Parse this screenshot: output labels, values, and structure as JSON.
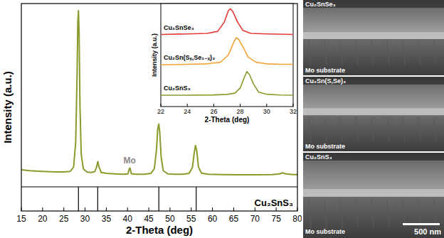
{
  "chart_data": [
    {
      "type": "line",
      "x_label": "2-Theta (deg)",
      "y_label": "Intensity (a.u.)",
      "color": "#8b9a2b",
      "x": [
        15,
        17,
        19,
        21,
        23,
        25,
        26.5,
        27.3,
        27.8,
        28.1,
        28.3,
        28.45,
        28.6,
        28.8,
        29.1,
        29.6,
        30.5,
        31.5,
        32.3,
        32.7,
        33.0,
        33.3,
        33.8,
        35,
        37,
        39,
        40.1,
        40.4,
        40.6,
        40.9,
        42,
        44,
        45.5,
        46.3,
        46.8,
        47.1,
        47.35,
        47.6,
        47.9,
        48.4,
        49.5,
        51,
        53,
        54.5,
        55.3,
        55.7,
        56.0,
        56.3,
        56.7,
        57.4,
        59,
        62,
        66,
        70,
        74,
        75.8,
        76.5,
        77.3,
        79,
        80
      ],
      "values": [
        9.5,
        9,
        8.7,
        8.5,
        8.3,
        8.3,
        8.6,
        11,
        25,
        60,
        92,
        98,
        85,
        45,
        18,
        10,
        8.2,
        8,
        8.5,
        11,
        14,
        11,
        8,
        7.5,
        7.2,
        7,
        7.2,
        10,
        10.5,
        7.3,
        7,
        7,
        7.5,
        10,
        20,
        32,
        35,
        30,
        17,
        9,
        7.2,
        7,
        7,
        7.5,
        11,
        19,
        23,
        20,
        11,
        7.6,
        7,
        6.8,
        6.7,
        6.7,
        6.8,
        7.2,
        7.8,
        7.2,
        6.8,
        6.8
      ],
      "xlim": [
        15,
        80
      ],
      "ylim": [
        0,
        102
      ],
      "xticks": [
        15,
        20,
        25,
        30,
        35,
        40,
        45,
        50,
        55,
        60,
        65,
        70,
        75,
        80
      ],
      "tick_labels": "x",
      "annotations": [
        {
          "text": "Mo",
          "x": 40.5
        }
      ],
      "reference": {
        "name": "Cu₂SnS₃",
        "x": [
          28.45,
          32.98,
          47.37,
          56.17
        ]
      }
    },
    {
      "type": "line",
      "x_label": "2-Theta (deg)",
      "y_label": "Intensity (a.u.)",
      "xlim": [
        22,
        32
      ],
      "ylim": [
        0,
        100
      ],
      "xticks": [
        22,
        24,
        26,
        28,
        30,
        32
      ],
      "tick_labels": "x",
      "series": [
        {
          "name": "Cu₂SnSe₃",
          "color": "#e53935",
          "x": [
            22,
            24,
            25.5,
            26.3,
            26.8,
            27.1,
            27.25,
            27.45,
            27.8,
            28.2,
            28.8,
            30,
            32
          ],
          "values": [
            70,
            70.5,
            71,
            73,
            82,
            93,
            95,
            92,
            82,
            74,
            71,
            70.5,
            70
          ]
        },
        {
          "name": "Cu₂Sn(Sₓ,Se₁₋ₓ)₃",
          "color": "#f4a236",
          "x": [
            22,
            24,
            25.5,
            26.5,
            27.1,
            27.5,
            27.7,
            27.9,
            28.2,
            28.6,
            29.2,
            30,
            31,
            32
          ],
          "values": [
            40.5,
            41,
            41.5,
            43,
            50,
            62,
            67,
            65,
            58,
            48,
            43,
            41.5,
            41,
            41
          ]
        },
        {
          "name": "Cu₂SnS₃",
          "color": "#8b9a2b",
          "x": [
            22,
            24,
            26,
            27,
            27.6,
            28,
            28.3,
            28.5,
            28.7,
            29,
            29.4,
            30,
            31,
            32
          ],
          "values": [
            11,
            11,
            11.3,
            11.8,
            13,
            18,
            28,
            34,
            31,
            22,
            14,
            12,
            11.2,
            11
          ]
        }
      ]
    }
  ],
  "sem_images": {
    "panels": [
      {
        "label": "Cu₂SnSe₃",
        "substrate": "Mo substrate"
      },
      {
        "label": "Cu₂Sn(S,Se)₃",
        "substrate": "Mo substrate"
      },
      {
        "label": "Cu₂SnS₃",
        "substrate": "Mo substrate"
      }
    ],
    "scale_bar": "500 nm"
  }
}
